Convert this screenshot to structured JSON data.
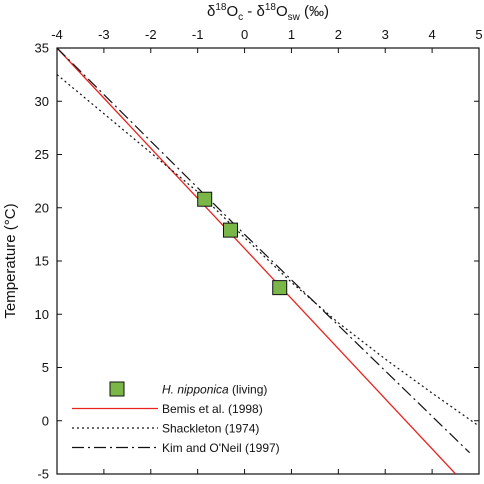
{
  "chart_data": {
    "type": "line",
    "xlabel": "δ18Oc - δ18Osw (‰)",
    "ylabel": "Temperature (°C)",
    "xlim": [
      -4,
      5
    ],
    "ylim": [
      -5,
      35
    ],
    "x_axis_position": "top",
    "x_ticks": [
      "-4",
      "-3",
      "-2",
      "-1",
      "0",
      "1",
      "2",
      "3",
      "4",
      "5"
    ],
    "y_ticks": [
      "-5",
      "0",
      "5",
      "10",
      "15",
      "20",
      "25",
      "30",
      "35"
    ],
    "grid": false,
    "legend_position": "bottom-left",
    "series": [
      {
        "name": "H. nipponica (living)",
        "name_italic": "H. nipponica",
        "name_rest": " (living)",
        "kind": "scatter",
        "marker": "square",
        "color": "#7ab648",
        "points": [
          [
            -0.85,
            20.8
          ],
          [
            -0.3,
            17.9
          ],
          [
            0.75,
            12.5
          ]
        ]
      },
      {
        "name": "Bemis et al. (1998)",
        "kind": "line",
        "style": "solid",
        "color": "#e8231f",
        "points": [
          [
            -4.0,
            35.0
          ],
          [
            4.5,
            -5.0
          ]
        ]
      },
      {
        "name": "Shackleton  (1974)",
        "kind": "line",
        "style": "dotted",
        "color": "#111111",
        "points": [
          [
            -4.0,
            32.5
          ],
          [
            -1.0,
            21.5
          ],
          [
            0.0,
            17.2
          ],
          [
            1.0,
            13.0
          ],
          [
            2.0,
            9.2
          ],
          [
            3.0,
            5.8
          ],
          [
            4.0,
            2.6
          ],
          [
            5.0,
            -0.5
          ]
        ]
      },
      {
        "name": "Kim and O'Neil (1997)",
        "kind": "line",
        "style": "dashdot",
        "color": "#111111",
        "points": [
          [
            -4.0,
            35.0
          ],
          [
            0.0,
            17.5
          ],
          [
            4.8,
            -3.0
          ]
        ]
      }
    ]
  }
}
